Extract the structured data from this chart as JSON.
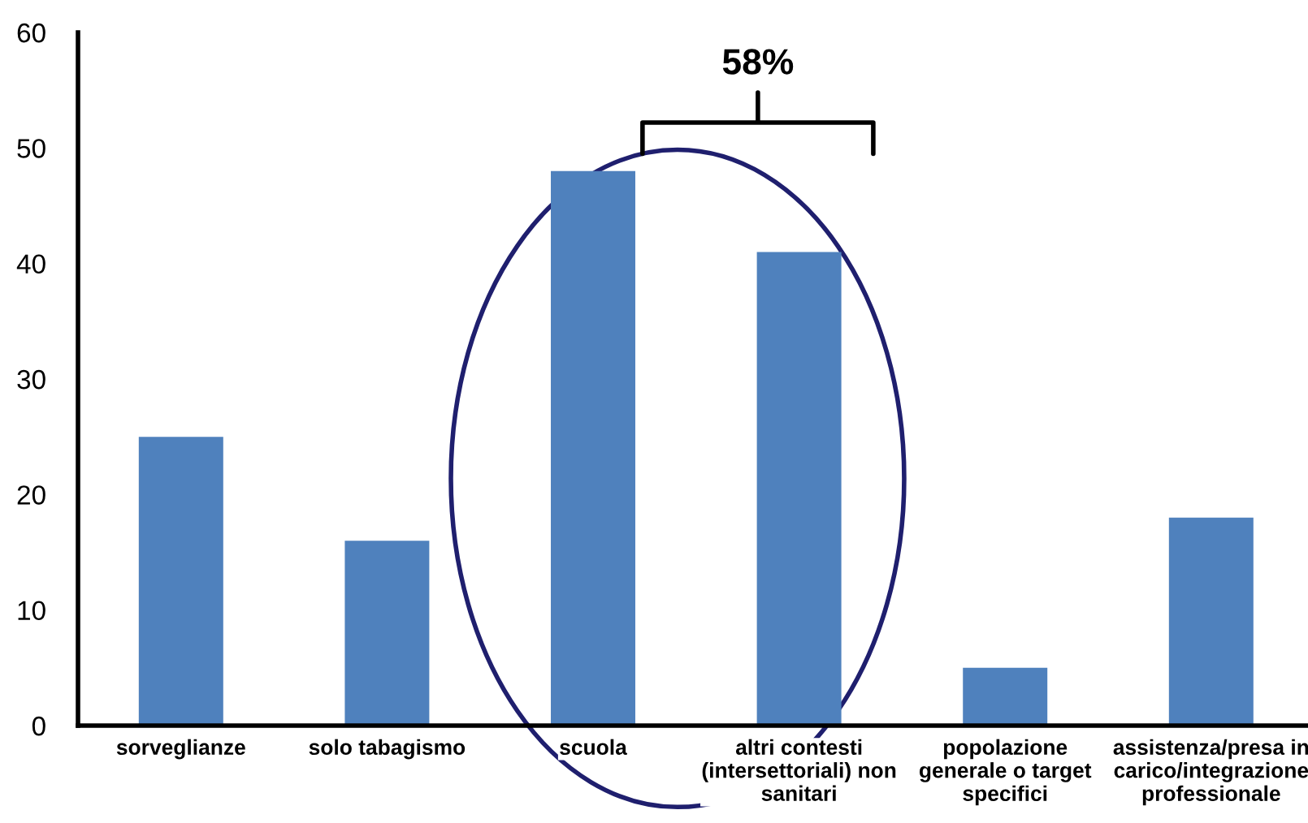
{
  "chart_data": {
    "type": "bar",
    "categories": [
      "sorveglianze",
      "solo tabagismo",
      "scuola",
      "altri contesti\n(intersettoriali) non\nsanitari",
      "popolazione\ngenerale o target\nspecifici",
      "assistenza/presa in\ncarico/integrazione\nprofessionale"
    ],
    "values": [
      25,
      16,
      48,
      41,
      5,
      18
    ],
    "color": "#4f81bd",
    "ylim": [
      0,
      60
    ],
    "yticks": [
      0,
      10,
      20,
      30,
      40,
      50,
      60
    ],
    "grid": false,
    "legend": false,
    "annotations": [
      "58%"
    ]
  }
}
